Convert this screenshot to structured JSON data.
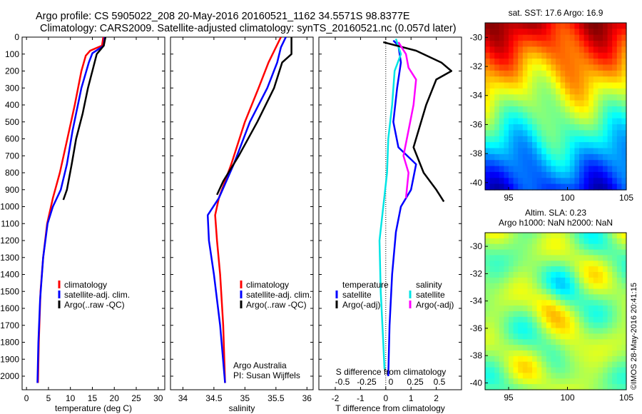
{
  "header": {
    "line1": "Argo profile: CS 5905022_208 20-May-2016 20160521_1162 34.5571S 98.8377E",
    "line2": "Climatology: CARS2009. Satellite-adjusted climatology: synTS_20160521.nc (0.057d later)"
  },
  "colors": {
    "climatology": "#ff0000",
    "satellite": "#0000ff",
    "argo": "#000000",
    "sat_salinity": "#00e5e5",
    "argo_salinity": "#ff00ff"
  },
  "chart_data": [
    {
      "type": "line",
      "id": "temperature",
      "xlabel": "temperature (deg C)",
      "ylabel": "",
      "xlim": [
        -1,
        31.5
      ],
      "ylim": [
        2080,
        0
      ],
      "xticks": [
        0,
        5,
        10,
        15,
        20,
        25,
        30
      ],
      "yticks": [
        0,
        100,
        200,
        300,
        400,
        500,
        600,
        700,
        800,
        900,
        1000,
        1100,
        1200,
        1300,
        1400,
        1500,
        1600,
        1700,
        1800,
        1900,
        2000
      ],
      "legend": [
        "climatology",
        "satellite-adj. clim.",
        "Argo(..raw -QC)"
      ],
      "series": [
        {
          "name": "climatology",
          "color": "#ff0000",
          "points": [
            [
              17.5,
              0
            ],
            [
              17.2,
              50
            ],
            [
              14.5,
              80
            ],
            [
              13.5,
              110
            ],
            [
              12.5,
              200
            ],
            [
              11,
              400
            ],
            [
              9.3,
              600
            ],
            [
              7.6,
              800
            ],
            [
              6,
              950
            ],
            [
              4.7,
              1100
            ],
            [
              3.8,
              1300
            ],
            [
              3.2,
              1500
            ],
            [
              2.8,
              1800
            ],
            [
              2.6,
              2040
            ]
          ]
        },
        {
          "name": "satellite-adj. clim.",
          "color": "#0000ff",
          "points": [
            [
              17.8,
              0
            ],
            [
              17.6,
              50
            ],
            [
              15,
              95
            ],
            [
              14.2,
              150
            ],
            [
              12.5,
              300
            ],
            [
              10.5,
              550
            ],
            [
              9.2,
              750
            ],
            [
              7.8,
              900
            ],
            [
              6,
              1000
            ],
            [
              4.8,
              1100
            ],
            [
              3.8,
              1300
            ],
            [
              3.1,
              1550
            ],
            [
              2.7,
              1800
            ],
            [
              2.5,
              2040
            ]
          ]
        },
        {
          "name": "Argo(..raw -QC)",
          "color": "#000000",
          "points": [
            [
              18,
              0
            ],
            [
              17.6,
              50
            ],
            [
              16,
              100
            ],
            [
              15,
              200
            ],
            [
              14,
              300
            ],
            [
              12.8,
              450
            ],
            [
              11.3,
              600
            ],
            [
              10.3,
              750
            ],
            [
              9.2,
              900
            ],
            [
              8.4,
              960
            ]
          ]
        }
      ]
    },
    {
      "type": "line",
      "id": "salinity",
      "xlabel": "salinity",
      "ylabel": "",
      "xlim": [
        33.8,
        36.1
      ],
      "ylim": [
        2080,
        0
      ],
      "xticks": [
        34,
        34.5,
        35,
        35.5,
        36
      ],
      "legend": [
        "climatology",
        "satellite-adj. clim.",
        "Argo(..raw -QC)"
      ],
      "annotation": [
        "Argo Australia",
        "PI: Susan Wijffels"
      ],
      "series": [
        {
          "name": "climatology",
          "color": "#ff0000",
          "points": [
            [
              35.58,
              0
            ],
            [
              35.5,
              60
            ],
            [
              35.38,
              150
            ],
            [
              35.22,
              300
            ],
            [
              35,
              500
            ],
            [
              34.78,
              750
            ],
            [
              34.58,
              950
            ],
            [
              34.52,
              1050
            ],
            [
              34.55,
              1200
            ],
            [
              34.6,
              1400
            ],
            [
              34.65,
              1700
            ],
            [
              34.68,
              2040
            ]
          ]
        },
        {
          "name": "satellite-adj. clim.",
          "color": "#0000ff",
          "points": [
            [
              35.66,
              0
            ],
            [
              35.58,
              60
            ],
            [
              35.52,
              150
            ],
            [
              35.36,
              300
            ],
            [
              35.08,
              500
            ],
            [
              34.82,
              750
            ],
            [
              34.58,
              950
            ],
            [
              34.4,
              1050
            ],
            [
              34.42,
              1200
            ],
            [
              34.5,
              1400
            ],
            [
              34.6,
              1700
            ],
            [
              34.68,
              2040
            ]
          ]
        },
        {
          "name": "Argo(..raw -QC)",
          "color": "#000000",
          "points": [
            [
              35.75,
              0
            ],
            [
              35.75,
              100
            ],
            [
              35.6,
              150
            ],
            [
              35.47,
              300
            ],
            [
              35.2,
              500
            ],
            [
              34.9,
              700
            ],
            [
              34.65,
              850
            ],
            [
              34.55,
              930
            ]
          ]
        }
      ]
    },
    {
      "type": "line",
      "id": "difference",
      "xlabel": "T difference from climatology",
      "ylabel": "",
      "xlim": [
        -2.65,
        3
      ],
      "ylim": [
        2080,
        0
      ],
      "xticks": [
        -2,
        -1,
        0,
        1,
        2
      ],
      "top_xlabel": "S difference from climatology",
      "top_xticks": [
        "-0.5",
        "-0.25",
        "0",
        "0.25",
        "0.5"
      ],
      "legend": [
        [
          "temperature",
          "salinity"
        ],
        [
          "satellite",
          "satellite"
        ],
        [
          "Argo(-adj)",
          "Argo(-adj)"
        ]
      ],
      "series": [
        {
          "name": "temperature satellite",
          "color": "#0000ff",
          "points": [
            [
              0.3,
              20
            ],
            [
              0.5,
              50
            ],
            [
              0.6,
              150
            ],
            [
              0.45,
              300
            ],
            [
              0.3,
              500
            ],
            [
              0.5,
              650
            ],
            [
              1.2,
              750
            ],
            [
              1,
              900
            ],
            [
              0.6,
              1000
            ],
            [
              0.4,
              1150
            ],
            [
              0.25,
              1400
            ],
            [
              0.15,
              1700
            ],
            [
              0.1,
              2000
            ]
          ]
        },
        {
          "name": "salinity satellite",
          "color": "#00e5e5",
          "points": [
            [
              0.4,
              10
            ],
            [
              0.6,
              100
            ],
            [
              0.35,
              200
            ],
            [
              0.25,
              400
            ],
            [
              0.1,
              600
            ],
            [
              0.05,
              800
            ],
            [
              -0.1,
              1000
            ],
            [
              -0.25,
              1200
            ],
            [
              -0.2,
              1500
            ],
            [
              -0.1,
              1800
            ],
            [
              -0.05,
              1960
            ]
          ]
        },
        {
          "name": "temperature Argo(-adj)",
          "color": "#000000",
          "points": [
            [
              -0.1,
              30
            ],
            [
              1.2,
              80
            ],
            [
              2.2,
              150
            ],
            [
              2.6,
              200
            ],
            [
              2,
              250
            ],
            [
              1.6,
              400
            ],
            [
              1.1,
              650
            ],
            [
              1.5,
              800
            ],
            [
              2,
              900
            ],
            [
              2.3,
              970
            ]
          ]
        },
        {
          "name": "salinity Argo(-adj)",
          "color": "#ff00ff",
          "points": [
            [
              0.5,
              30
            ],
            [
              0.8,
              100
            ],
            [
              0.9,
              180
            ],
            [
              1.2,
              250
            ],
            [
              1.1,
              400
            ],
            [
              0.9,
              550
            ],
            [
              0.7,
              700
            ],
            [
              0.9,
              800
            ],
            [
              0.8,
              950
            ]
          ]
        }
      ]
    },
    {
      "type": "heatmap",
      "id": "sst-map",
      "title": "sat. SST: 17.6 Argo: 16.9",
      "xlim": [
        93,
        105
      ],
      "ylim": [
        -40.5,
        -29
      ],
      "xticks": [
        95,
        100,
        105
      ],
      "yticks": [
        -30,
        -32,
        -34,
        -36,
        -38,
        -40
      ],
      "colormap": "jet"
    },
    {
      "type": "heatmap",
      "id": "sla-map",
      "title": [
        "Altim. SLA: 0.23",
        "Argo h1000: NaN h2000: NaN"
      ],
      "xlim": [
        93,
        105
      ],
      "ylim": [
        -40.5,
        -29
      ],
      "xticks": [
        95,
        100,
        105
      ],
      "yticks": [
        -30,
        -32,
        -34,
        -36,
        -38,
        -40
      ],
      "colormap": "jet"
    }
  ],
  "credit": "©IMOS 28-May-2016 20:41:15"
}
